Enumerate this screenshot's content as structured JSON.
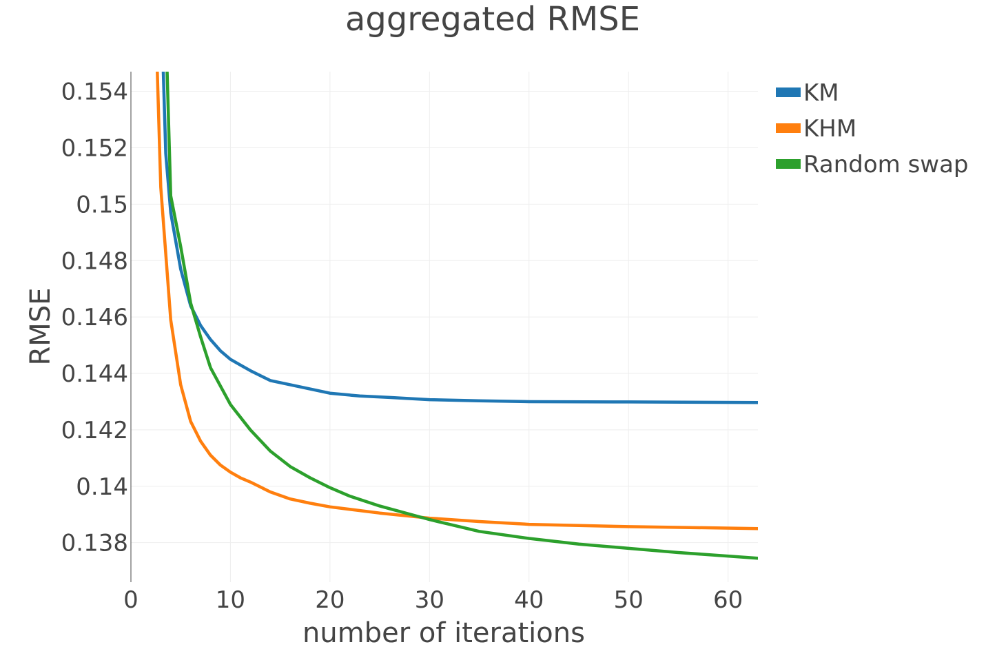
{
  "chart_data": {
    "type": "line",
    "title": "aggregated RMSE",
    "xlabel": "number of iterations",
    "ylabel": "RMSE",
    "xlim": [
      0,
      63
    ],
    "ylim": [
      0.1366,
      0.1547
    ],
    "x_ticks": [
      0,
      10,
      20,
      30,
      40,
      50,
      60
    ],
    "x_tick_labels": [
      "0",
      "10",
      "20",
      "30",
      "40",
      "50",
      "60"
    ],
    "y_ticks": [
      0.138,
      0.14,
      0.142,
      0.144,
      0.146,
      0.148,
      0.15,
      0.152,
      0.154
    ],
    "y_tick_labels": [
      "0.138",
      "0.14",
      "0.142",
      "0.144",
      "0.146",
      "0.148",
      "0.15",
      "0.152",
      "0.154"
    ],
    "grid": true,
    "legend_position": "top-right",
    "series": [
      {
        "name": "KM",
        "color": "#1f77b4",
        "x": [
          2.8,
          3.5,
          4,
          5,
          6,
          7,
          8,
          9,
          10,
          11,
          12,
          14,
          16,
          18,
          20,
          23,
          26,
          30,
          35,
          40,
          50,
          63
        ],
        "y": [
          0.16,
          0.1518,
          0.1497,
          0.1477,
          0.1464,
          0.1457,
          0.1452,
          0.1448,
          0.1445,
          0.1443,
          0.1441,
          0.14375,
          0.1436,
          0.14345,
          0.1433,
          0.1432,
          0.14315,
          0.14307,
          0.14303,
          0.143,
          0.14299,
          0.14297
        ]
      },
      {
        "name": "KHM",
        "color": "#ff7f0e",
        "x": [
          2.2,
          3,
          4,
          5,
          6,
          7,
          8,
          9,
          10,
          11,
          12,
          14,
          16,
          18,
          20,
          25,
          30,
          35,
          40,
          50,
          63
        ],
        "y": [
          0.16,
          0.1506,
          0.1459,
          0.1436,
          0.1423,
          0.1416,
          0.1411,
          0.14075,
          0.1405,
          0.1403,
          0.14015,
          0.1398,
          0.13955,
          0.1394,
          0.13927,
          0.13905,
          0.13887,
          0.13875,
          0.13865,
          0.13857,
          0.1385
        ]
      },
      {
        "name": "Random swap",
        "color": "#2ca02c",
        "x": [
          3.2,
          4,
          5,
          6,
          7,
          8,
          9,
          10,
          12,
          14,
          16,
          18,
          20,
          22,
          25,
          30,
          35,
          40,
          45,
          50,
          55,
          63
        ],
        "y": [
          0.16,
          0.1503,
          0.1485,
          0.1465,
          0.1453,
          0.1442,
          0.14355,
          0.1429,
          0.142,
          0.14125,
          0.1407,
          0.1403,
          0.13995,
          0.13965,
          0.1393,
          0.13882,
          0.1384,
          0.13815,
          0.13795,
          0.1378,
          0.13765,
          0.13745
        ]
      }
    ]
  }
}
